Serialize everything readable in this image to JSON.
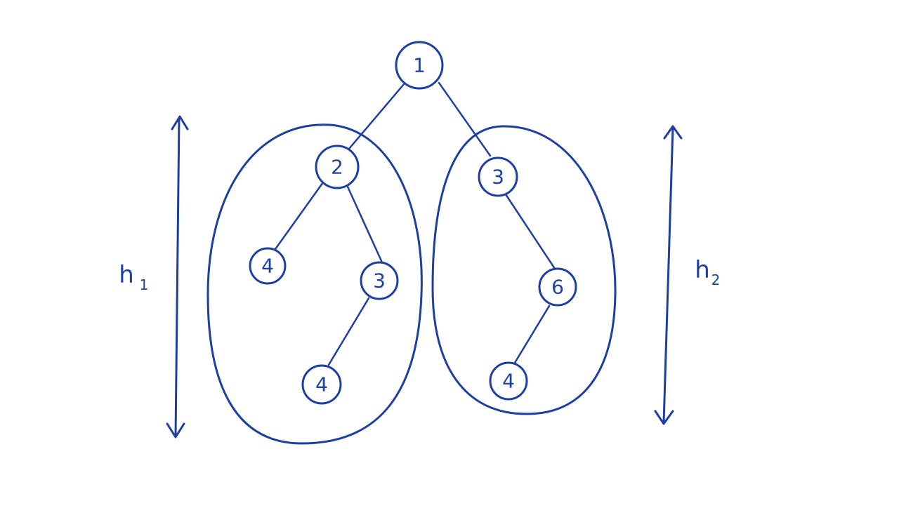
{
  "colors": {
    "ink": "#1f3fa0",
    "background": "#ffffff"
  },
  "tree": {
    "root": {
      "label": "1"
    },
    "left_subtree": {
      "nodes": [
        {
          "label": "2"
        },
        {
          "label": "4"
        },
        {
          "label": "3"
        },
        {
          "label": "4"
        }
      ]
    },
    "right_subtree": {
      "nodes": [
        {
          "label": "3"
        },
        {
          "label": "6"
        },
        {
          "label": "4"
        }
      ]
    }
  },
  "heights": {
    "left": {
      "base": "h",
      "sub": "1"
    },
    "right": {
      "base": "h",
      "sub": "2"
    }
  }
}
